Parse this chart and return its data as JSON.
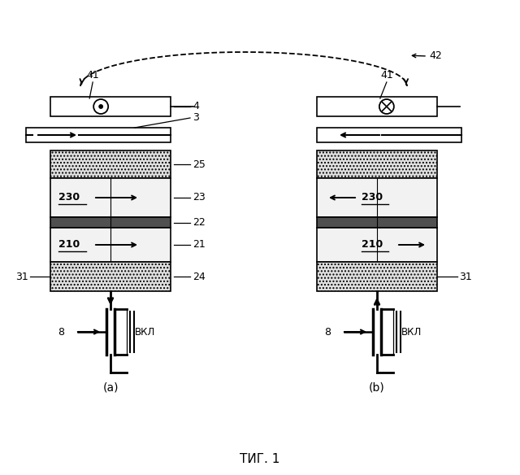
{
  "fig_width": 6.4,
  "fig_height": 5.84,
  "bg_color": "#ffffff",
  "title": "ΤИГ. 1",
  "lbl_41": "41",
  "lbl_42": "42",
  "lbl_4": "4",
  "lbl_3": "3",
  "lbl_25": "25",
  "lbl_23": "23",
  "lbl_22": "22",
  "lbl_21": "21",
  "lbl_24": "24",
  "lbl_31": "31",
  "lbl_8": "8",
  "lbl_VKL": "ВКЛ",
  "lbl_230": "230",
  "lbl_210": "210",
  "lbl_a": "(a)",
  "lbl_b": "(b)",
  "fc_dotted": "#e0e0e0",
  "fc_light": "#f2f2f2",
  "fc_dark": "#505050",
  "fc_medium": "#c0c0c0"
}
